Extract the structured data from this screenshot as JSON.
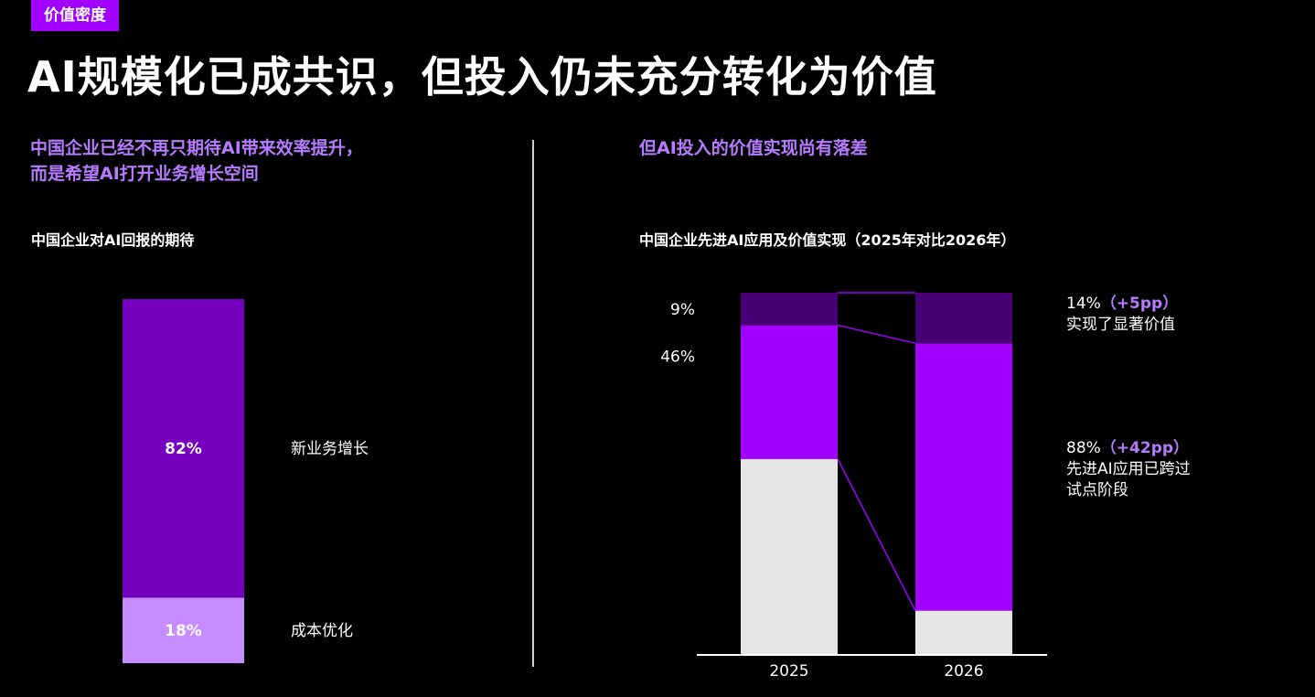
{
  "header": {
    "tag": "价值密度",
    "title": "AI规模化已成共识，但投入仍未充分转化为价值"
  },
  "left": {
    "subtitle_line1": "中国企业已经不再只期待AI带来效率提升，",
    "subtitle_line2": "而是希望AI打开业务增长空间"
  },
  "right": {
    "subtitle": "但AI投入的价值实现尚有落差"
  },
  "colors": {
    "accent": "#a100ff",
    "accent_light": "#b77bff",
    "bar_dark_purple": "#7500c0",
    "bar_light_purple": "#c68bff",
    "bar_deep": "#460073",
    "bar_grey": "#e5e5e5"
  },
  "chart_data": [
    {
      "type": "bar",
      "title": "中国企业对AI回报的期待",
      "stacked": true,
      "categories": [
        ""
      ],
      "series": [
        {
          "name": "成本优化",
          "values": [
            18
          ],
          "label": "18%"
        },
        {
          "name": "新业务增长",
          "values": [
            82
          ],
          "label": "82%"
        }
      ],
      "ylim": [
        0,
        100
      ]
    },
    {
      "type": "bar",
      "title": "中国企业先进AI应用及价值实现（2025年对比2026年）",
      "stacked": true,
      "categories": [
        "2025",
        "2026"
      ],
      "series": [
        {
          "name": "先进AI应用已跨过试点阶段",
          "values": [
            46,
            88
          ],
          "labels": [
            "46%",
            ""
          ]
        },
        {
          "name": "实现了显著价值",
          "values": [
            9,
            14
          ],
          "labels": [
            "9%",
            ""
          ]
        }
      ],
      "ylim": [
        0,
        100
      ],
      "annotations": [
        {
          "value": "14%",
          "change": "（+5pp）",
          "text": "实现了显著价值"
        },
        {
          "value": "88%",
          "change": "（+42pp）",
          "text_line1": "先进AI应用已跨过",
          "text_line2": "试点阶段"
        }
      ]
    }
  ]
}
